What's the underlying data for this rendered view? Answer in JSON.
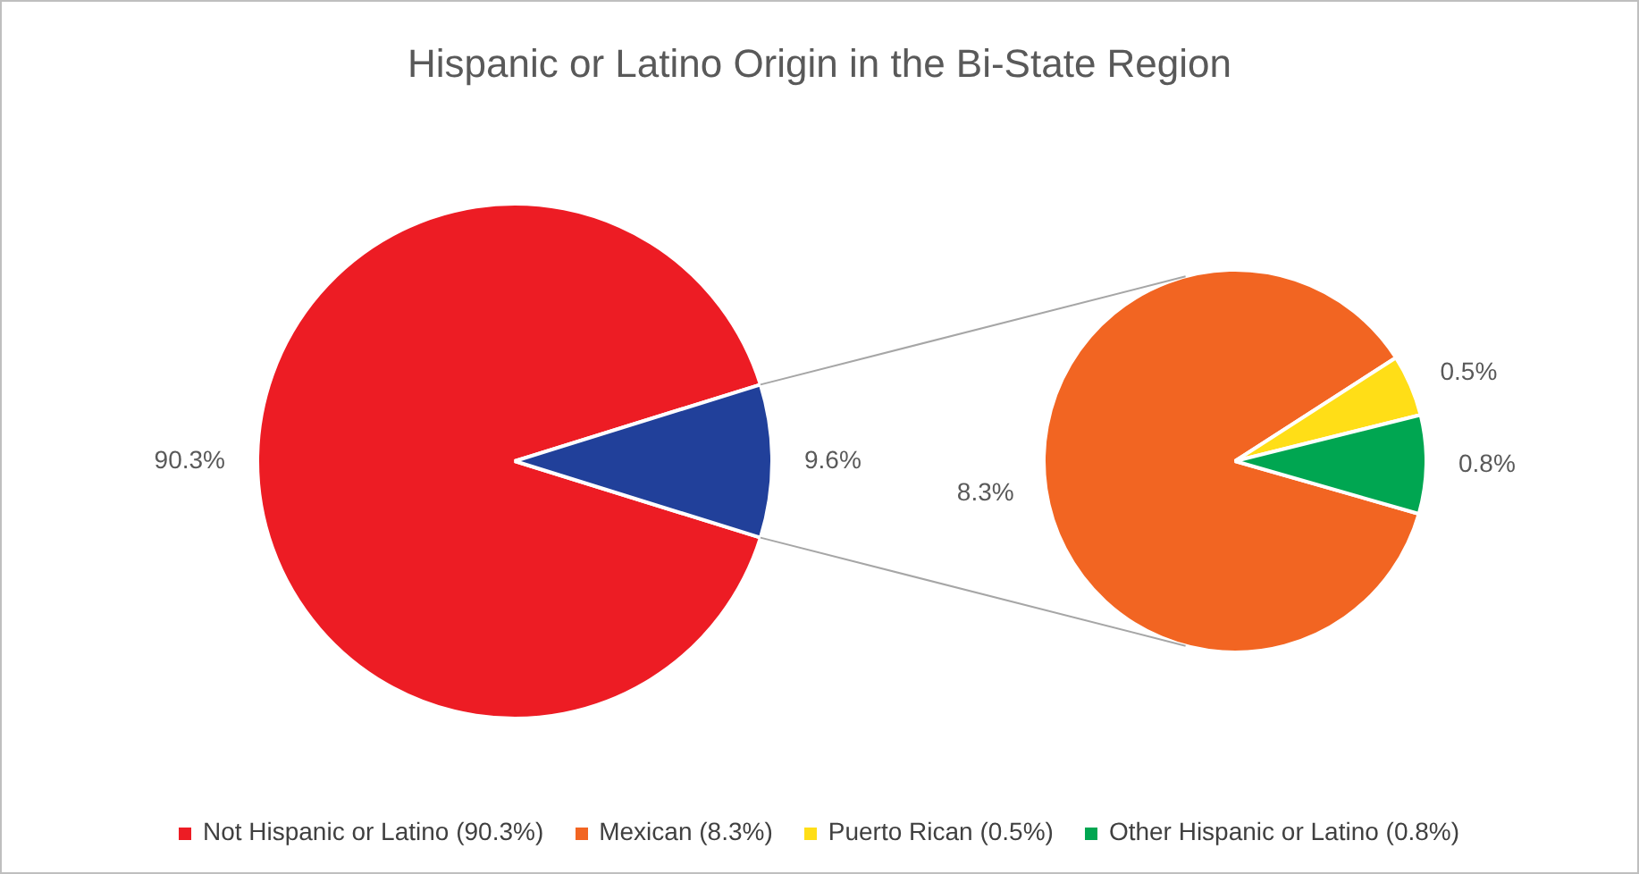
{
  "chart_data": [
    {
      "type": "pie",
      "title": "Hispanic or Latino Origin in the Bi-State Region",
      "categories": [
        "Not Hispanic or Latino (90.3%)",
        null
      ],
      "values": [
        90.3,
        9.6
      ],
      "colors": [
        "#ed1c24",
        "#21409a"
      ],
      "value_labels": [
        "90.3%",
        "9.6%"
      ],
      "legend": "bottom"
    },
    {
      "type": "pie",
      "categories": [
        "Mexican (8.3%)",
        "Puerto Rican (0.5%)",
        "Other Hispanic or Latino (0.8%)"
      ],
      "values": [
        8.3,
        0.5,
        0.8
      ],
      "colors": [
        "#f26522",
        "#ffde17",
        "#00a651"
      ],
      "value_labels": [
        "8.3%",
        "0.5%",
        "0.8%"
      ],
      "legend": "bottom"
    }
  ]
}
